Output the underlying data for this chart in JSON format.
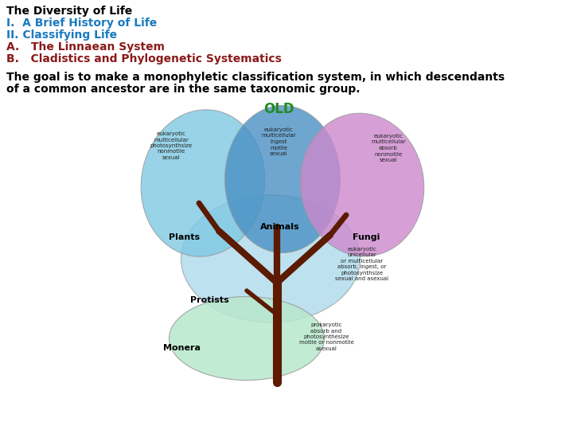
{
  "title_line1": "The Diversity of Life",
  "title_line1_color": "#000000",
  "line2": "I.  A Brief History of Life",
  "line2_color": "#1a7abf",
  "line3": "II. Classifying Life",
  "line3_color": "#1a7abf",
  "line4": "A.   The Linnaean System",
  "line4_color": "#8b1a1a",
  "line5": "B.   Cladistics and Phylogenetic Systematics",
  "line5_color": "#8b1a1a",
  "body_text_line1": "The goal is to make a monophyletic classification system, in which descendants",
  "body_text_line2": "of a common ancestor are in the same taxonomic group.",
  "body_color": "#000000",
  "old_label": "OLD",
  "old_color": "#228B22",
  "bg_color": "#ffffff",
  "plants_color": "#7EC8E3",
  "animals_color": "#4A90C4",
  "fungi_color": "#CC88CC",
  "protists_color": "#A8D8EA",
  "monera_color": "#B8E8CC",
  "tree_color": "#5C1A00",
  "plants_label": "Plants",
  "animals_label": "Animals",
  "fungi_label": "Fungi",
  "protists_label": "Protists",
  "monera_label": "Monera",
  "plants_text": "eukaryotic\nmulticellular\nphotosynthsize\nnonmotile\nsexual",
  "animals_text": "eukaryotic\nmulticellular\ningest\nmotile\nsexual",
  "fungi_text": "eukaryotic\nmulticellular\nabsorb\nnonmotile\nsexual",
  "protists_text": "eukaryotic\nunicellular\nor multicellular\nabsorb, ingest, or\nphotosynthsize\nsexual and asexual",
  "monera_text": "prokaryotic\nabsorb and\nphotosynthesize\nmotile or nonmotile\nasexual"
}
